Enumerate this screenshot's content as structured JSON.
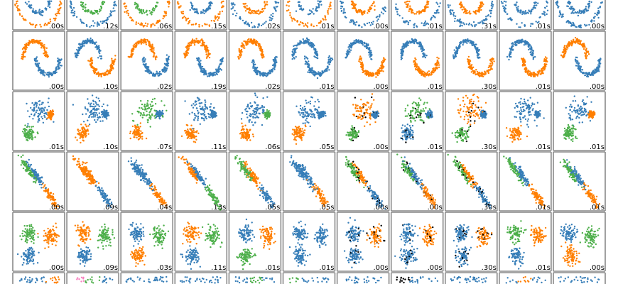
{
  "chart_data": {
    "type": "scatter",
    "layout": "grid of 6 rows x 11 columns of small scatter panels",
    "palette": {
      "b": "#377eb8",
      "o": "#ff7f00",
      "g": "#4daf4a",
      "p": "#f781bf",
      "k": "#000000"
    },
    "rows": [
      {
        "shape": "circles",
        "colors": [
          "ob",
          "bg",
          "og",
          "ob",
          "bo",
          "ob",
          "bo",
          "bo",
          "bo",
          "bb",
          "bb"
        ],
        "timings": [
          ".00s",
          ".12s",
          ".06s",
          ".15s",
          ".02s",
          ".01s",
          ".00s",
          ".01s",
          ".31s",
          ".01s",
          ".00s"
        ]
      },
      {
        "shape": "moons",
        "colors": [
          "ob",
          "bo",
          "ob",
          "ob",
          "ob",
          "bb",
          "bo",
          "bo",
          "bo",
          "bo",
          "ob"
        ],
        "timings": [
          ".00s",
          ".10s",
          ".02s",
          ".19s",
          ".02s",
          ".01s",
          ".00s",
          ".01s",
          ".30s",
          ".01s",
          ".00s"
        ]
      },
      {
        "shape": "varied",
        "colors": [
          "bog",
          "bbo",
          "gbo",
          "bbo",
          "bgo",
          "bbo",
          "obg",
          "gbb",
          "obg",
          "bbo",
          "bog"
        ],
        "noise_columns": [
          6,
          7,
          8
        ],
        "timings": [
          ".01s",
          ".10s",
          ".07s",
          ".11s",
          ".06s",
          ".05s",
          ".00s",
          ".01s",
          ".30s",
          ".01s",
          ".01s"
        ]
      },
      {
        "shape": "aniso",
        "colors": [
          "gbo",
          "oob",
          "bbo",
          "obg",
          "gob",
          "bbo",
          "gob",
          "gbo",
          "gob",
          "gbo",
          "gbo"
        ],
        "noise_columns": [
          6,
          7,
          8
        ],
        "timings": [
          ".00s",
          ".09s",
          ".04s",
          ".13s",
          ".05s",
          ".05s",
          ".00s",
          ".00s",
          ".30s",
          ".01s",
          ".01s"
        ]
      },
      {
        "shape": "blobs",
        "colors": [
          "gob",
          "ogb",
          "bgo",
          "ogb",
          "bog",
          "bbb",
          "bob",
          "bob",
          "bob",
          "gob",
          "bgo"
        ],
        "noise_columns": [
          6,
          7,
          8
        ],
        "timings": [
          ".00s",
          ".09s",
          ".03s",
          ".11s",
          ".01s",
          ".01s",
          ".00s",
          ".00s",
          ".30s",
          ".01s",
          ".00s"
        ]
      },
      {
        "shape": "uniform",
        "colors": [
          "bbo",
          "pgb",
          "bbb",
          "bbb",
          "bgb",
          "gbb",
          "bbb",
          "kbb",
          "bbb",
          "bob",
          "bbb"
        ],
        "timings": [
          "",
          "",
          "",
          "",
          "",
          "",
          "",
          "",
          "",
          "",
          ""
        ]
      }
    ]
  }
}
